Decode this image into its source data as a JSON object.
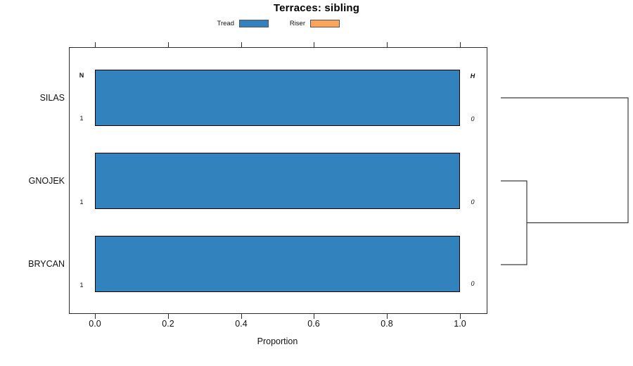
{
  "title": "Terraces: sibling",
  "legend": {
    "items": [
      {
        "label": "Tread",
        "color": "#3182BD"
      },
      {
        "label": "Riser",
        "color": "#FBA55C"
      }
    ]
  },
  "axis": {
    "label": "Proportion",
    "ticks": [
      "0.0",
      "0.2",
      "0.4",
      "0.6",
      "0.8",
      "1.0"
    ]
  },
  "headers": {
    "count": "N",
    "heterogeneity": "H"
  },
  "rows": [
    {
      "label": "SILAS",
      "count": "1",
      "h": "0",
      "tread": 1.0,
      "riser": 0.0
    },
    {
      "label": "GNOJEK",
      "count": "1",
      "h": "0",
      "tread": 1.0,
      "riser": 0.0
    },
    {
      "label": "BRYCAN",
      "count": "1",
      "h": "0",
      "tread": 1.0,
      "riser": 0.0
    }
  ],
  "chart_data": {
    "type": "bar",
    "orientation": "horizontal",
    "title": "Terraces: sibling",
    "categories": [
      "SILAS",
      "GNOJEK",
      "BRYCAN"
    ],
    "series": [
      {
        "name": "Tread",
        "color": "#3182BD",
        "values": [
          1.0,
          1.0,
          1.0
        ]
      },
      {
        "name": "Riser",
        "color": "#FBA55C",
        "values": [
          0.0,
          0.0,
          0.0
        ]
      }
    ],
    "xlabel": "Proportion",
    "xlim": [
      0,
      1
    ],
    "xticks": [
      0.0,
      0.2,
      0.4,
      0.6,
      0.8,
      1.0
    ],
    "grid": false,
    "legend_position": "top",
    "annotations": {
      "left_header": "N",
      "right_header": "H",
      "left_values": [
        1,
        1,
        1
      ],
      "right_values": [
        0,
        0,
        0
      ]
    },
    "dendrogram": {
      "side": "right",
      "leaves_top_to_bottom": [
        "SILAS",
        "GNOJEK",
        "BRYCAN"
      ],
      "merges": [
        {
          "join": [
            "GNOJEK",
            "BRYCAN"
          ],
          "relative_height": 0.2
        },
        {
          "join": [
            "SILAS",
            "GNOJEK+BRYCAN"
          ],
          "relative_height": 1.0
        }
      ]
    }
  }
}
